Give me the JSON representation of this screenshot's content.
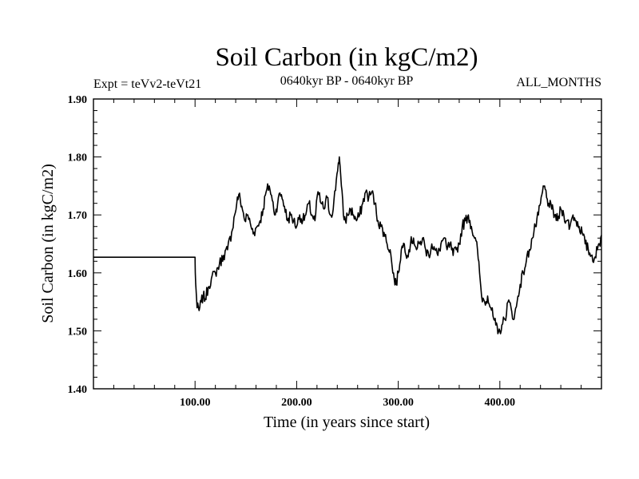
{
  "chart_data": {
    "type": "line",
    "title": "Soil Carbon (in kgC/m2)",
    "subtitle_left": "Expt = teVv2-teVt21",
    "subtitle_center": "0640kyr BP - 0640kyr BP",
    "subtitle_right": "ALL_MONTHS",
    "xlabel": "Time (in years since start)",
    "ylabel": "Soil Carbon (in kgC/m2)",
    "xlim": [
      0,
      500
    ],
    "ylim": [
      1.4,
      1.9
    ],
    "xticks": [
      100,
      200,
      300,
      400
    ],
    "xtick_labels": [
      "100.00",
      "200.00",
      "300.00",
      "400.00"
    ],
    "yticks": [
      1.4,
      1.5,
      1.6,
      1.7,
      1.8,
      1.9
    ],
    "ytick_labels": [
      "1.40",
      "1.50",
      "1.60",
      "1.70",
      "1.80",
      "1.90"
    ],
    "grid": false,
    "series": [
      {
        "name": "soil_carbon",
        "color": "#000000",
        "x": [
          0,
          100,
          100.2,
          101,
          102,
          104,
          106,
          108,
          110,
          113,
          116,
          120,
          124,
          128,
          132,
          136,
          139,
          141,
          143,
          146,
          149,
          152,
          155,
          158,
          161,
          164,
          167,
          170,
          173,
          176,
          179,
          182,
          185,
          188,
          191,
          194,
          197,
          200,
          203,
          206,
          209,
          212,
          215,
          218,
          221,
          224,
          227,
          230,
          233,
          236,
          239,
          241,
          242,
          244,
          246,
          248,
          250,
          253,
          256,
          259,
          262,
          265,
          268,
          271,
          274,
          277,
          280,
          283,
          286,
          289,
          292,
          294,
          296,
          298,
          300,
          303,
          306,
          309,
          312,
          315,
          318,
          321,
          324,
          327,
          330,
          333,
          336,
          339,
          342,
          345,
          348,
          351,
          354,
          357,
          360,
          363,
          366,
          369,
          372,
          375,
          378,
          380,
          382,
          385,
          388,
          391,
          394,
          396,
          398,
          400,
          402,
          405,
          408,
          411,
          414,
          417,
          420,
          423,
          426,
          429,
          432,
          435,
          438,
          440,
          442,
          444,
          446,
          448,
          451,
          454,
          457,
          460,
          463,
          466,
          469,
          472,
          475,
          478,
          481,
          484,
          487,
          490,
          493,
          496,
          498,
          500
        ],
        "values": [
          1.627,
          1.627,
          1.6,
          1.57,
          1.54,
          1.535,
          1.55,
          1.56,
          1.555,
          1.575,
          1.59,
          1.6,
          1.615,
          1.63,
          1.64,
          1.67,
          1.7,
          1.72,
          1.735,
          1.715,
          1.69,
          1.7,
          1.68,
          1.67,
          1.68,
          1.69,
          1.71,
          1.74,
          1.75,
          1.725,
          1.7,
          1.73,
          1.735,
          1.715,
          1.69,
          1.7,
          1.69,
          1.68,
          1.7,
          1.69,
          1.7,
          1.72,
          1.7,
          1.69,
          1.74,
          1.72,
          1.71,
          1.73,
          1.7,
          1.71,
          1.76,
          1.79,
          1.8,
          1.75,
          1.7,
          1.69,
          1.7,
          1.71,
          1.7,
          1.69,
          1.7,
          1.72,
          1.74,
          1.73,
          1.74,
          1.72,
          1.69,
          1.68,
          1.67,
          1.65,
          1.64,
          1.61,
          1.59,
          1.58,
          1.6,
          1.64,
          1.65,
          1.63,
          1.65,
          1.66,
          1.64,
          1.65,
          1.66,
          1.64,
          1.63,
          1.65,
          1.64,
          1.63,
          1.65,
          1.66,
          1.64,
          1.65,
          1.63,
          1.64,
          1.65,
          1.68,
          1.69,
          1.7,
          1.68,
          1.66,
          1.64,
          1.6,
          1.56,
          1.55,
          1.56,
          1.54,
          1.52,
          1.51,
          1.495,
          1.5,
          1.51,
          1.52,
          1.55,
          1.54,
          1.52,
          1.55,
          1.58,
          1.6,
          1.62,
          1.64,
          1.66,
          1.68,
          1.7,
          1.72,
          1.74,
          1.75,
          1.73,
          1.72,
          1.71,
          1.7,
          1.69,
          1.71,
          1.7,
          1.69,
          1.68,
          1.7,
          1.69,
          1.68,
          1.67,
          1.65,
          1.64,
          1.63,
          1.625,
          1.64,
          1.65,
          1.665
        ]
      }
    ]
  }
}
